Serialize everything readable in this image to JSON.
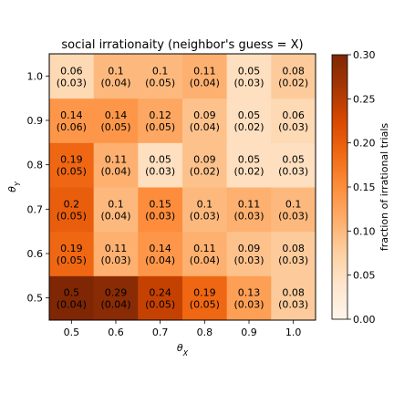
{
  "chart_data": {
    "type": "heatmap",
    "title": "social irrationaity (neighbor's guess = X)",
    "xlabel": "θ_X",
    "ylabel": "θ_Y",
    "x_categories": [
      "0.5",
      "0.6",
      "0.7",
      "0.8",
      "0.9",
      "1.0"
    ],
    "y_categories": [
      "0.5",
      "0.6",
      "0.7",
      "0.8",
      "0.9",
      "1.0"
    ],
    "values": [
      [
        0.5,
        0.29,
        0.24,
        0.19,
        0.13,
        0.08
      ],
      [
        0.19,
        0.11,
        0.14,
        0.11,
        0.09,
        0.08
      ],
      [
        0.2,
        0.1,
        0.15,
        0.1,
        0.11,
        0.1
      ],
      [
        0.19,
        0.11,
        0.05,
        0.09,
        0.05,
        0.05
      ],
      [
        0.14,
        0.14,
        0.12,
        0.09,
        0.05,
        0.06
      ],
      [
        0.06,
        0.1,
        0.1,
        0.11,
        0.05,
        0.08
      ]
    ],
    "errors": [
      [
        0.04,
        0.04,
        0.05,
        0.05,
        0.03,
        0.03
      ],
      [
        0.05,
        0.03,
        0.04,
        0.04,
        0.03,
        0.03
      ],
      [
        0.05,
        0.04,
        0.03,
        0.03,
        0.03,
        0.03
      ],
      [
        0.05,
        0.04,
        0.03,
        0.02,
        0.02,
        0.03
      ],
      [
        0.06,
        0.05,
        0.05,
        0.04,
        0.02,
        0.03
      ],
      [
        0.03,
        0.04,
        0.05,
        0.04,
        0.03,
        0.02
      ]
    ],
    "value_labels": [
      [
        "0.5",
        "0.29",
        "0.24",
        "0.19",
        "0.13",
        "0.08"
      ],
      [
        "0.19",
        "0.11",
        "0.14",
        "0.11",
        "0.09",
        "0.08"
      ],
      [
        "0.2",
        "0.1",
        "0.15",
        "0.1",
        "0.11",
        "0.1"
      ],
      [
        "0.19",
        "0.11",
        "0.05",
        "0.09",
        "0.05",
        "0.05"
      ],
      [
        "0.14",
        "0.14",
        "0.12",
        "0.09",
        "0.05",
        "0.06"
      ],
      [
        "0.06",
        "0.1",
        "0.1",
        "0.11",
        "0.05",
        "0.08"
      ]
    ],
    "error_labels": [
      [
        "(0.04)",
        "(0.04)",
        "(0.05)",
        "(0.05)",
        "(0.03)",
        "(0.03)"
      ],
      [
        "(0.05)",
        "(0.03)",
        "(0.04)",
        "(0.04)",
        "(0.03)",
        "(0.03)"
      ],
      [
        "(0.05)",
        "(0.04)",
        "(0.03)",
        "(0.03)",
        "(0.03)",
        "(0.03)"
      ],
      [
        "(0.05)",
        "(0.04)",
        "(0.03)",
        "(0.02)",
        "(0.02)",
        "(0.03)"
      ],
      [
        "(0.06)",
        "(0.05)",
        "(0.05)",
        "(0.04)",
        "(0.02)",
        "(0.03)"
      ],
      [
        "(0.03)",
        "(0.04)",
        "(0.05)",
        "(0.04)",
        "(0.03)",
        "(0.02)"
      ]
    ],
    "colormap": "Oranges",
    "color_range": [
      0,
      0.3
    ],
    "colorbar": {
      "label": "fraction of irrational trials",
      "ticks": [
        0.0,
        0.05,
        0.1,
        0.15,
        0.2,
        0.25,
        0.3
      ],
      "tick_labels": [
        "0.00",
        "0.05",
        "0.10",
        "0.15",
        "0.20",
        "0.25",
        "0.30"
      ]
    },
    "colors": {
      "low": "#fff5eb",
      "high": "#7f2704"
    }
  }
}
